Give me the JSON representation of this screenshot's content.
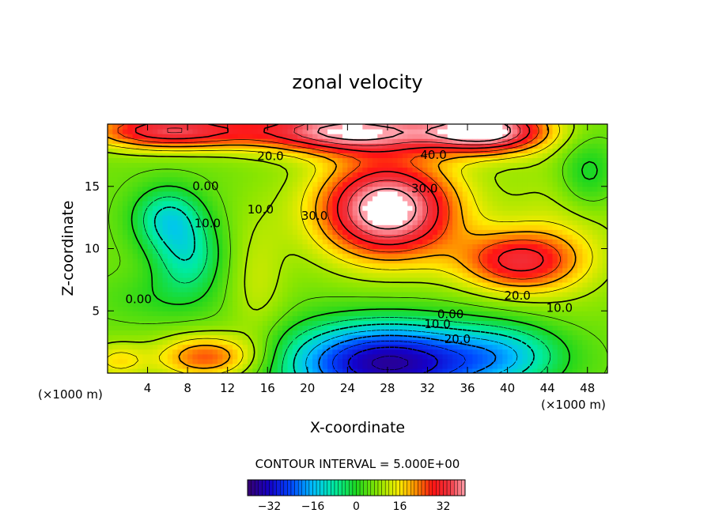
{
  "chart_data": {
    "type": "contour",
    "title": "zonal velocity",
    "xlabel": "X-coordinate",
    "ylabel": "Z-coordinate",
    "x_unit": "(×1000 m)",
    "xlim": [
      0,
      50
    ],
    "ylim": [
      0,
      20
    ],
    "x_ticks": [
      4,
      8,
      12,
      16,
      20,
      24,
      28,
      32,
      36,
      40,
      44,
      48
    ],
    "y_ticks": [
      5,
      10,
      15
    ],
    "x_tick_labels": [
      "4",
      "8",
      "12",
      "16",
      "20",
      "24",
      "28",
      "32",
      "36",
      "40",
      "44",
      "48"
    ],
    "y_tick_labels": [
      "5",
      "10",
      "15"
    ],
    "contour_interval_text": "CONTOUR INTERVAL = 5.000E+00",
    "contour_interval": 5,
    "colorbar": {
      "range": [
        -40,
        40
      ],
      "ticks": [
        -32,
        -16,
        0,
        16,
        32
      ],
      "tick_labels": [
        "−32",
        "−16",
        "0",
        "16",
        "32"
      ]
    },
    "features": [
      {
        "kind": "max",
        "x": 28,
        "z": 13.2,
        "value": 45
      },
      {
        "kind": "max",
        "x": 24,
        "z": 19.5,
        "value": 42
      },
      {
        "kind": "max",
        "x": 38,
        "z": 19.5,
        "value": 42
      },
      {
        "kind": "min",
        "x": 28,
        "z": 0.8,
        "value": -36
      },
      {
        "kind": "min",
        "x": 6,
        "z": 12.5,
        "value": -14
      },
      {
        "kind": "min",
        "x": 8,
        "z": 9.3,
        "value": -14
      }
    ],
    "contour_labels": [
      {
        "text": "20.0",
        "x": 16.3,
        "z": 17.4
      },
      {
        "text": "0.00",
        "x": 9.8,
        "z": 15.0
      },
      {
        "text": "10.0",
        "x": 10.0,
        "z": 12.0
      },
      {
        "text": "10.0",
        "x": 15.3,
        "z": 13.1
      },
      {
        "text": "30.0",
        "x": 20.7,
        "z": 12.6
      },
      {
        "text": "30.0",
        "x": 31.7,
        "z": 14.8
      },
      {
        "text": "40.0",
        "x": 32.6,
        "z": 17.5
      },
      {
        "text": "0.00",
        "x": 3.1,
        "z": 5.9
      },
      {
        "text": "20.0",
        "x": 41.0,
        "z": 6.2
      },
      {
        "text": "10.0",
        "x": 45.2,
        "z": 5.2
      },
      {
        "text": "0.00",
        "x": 34.3,
        "z": 4.7
      },
      {
        "text": "10.0",
        "x": 33.0,
        "z": 3.9
      },
      {
        "text": "20.0",
        "x": 35.0,
        "z": 2.7
      }
    ]
  }
}
